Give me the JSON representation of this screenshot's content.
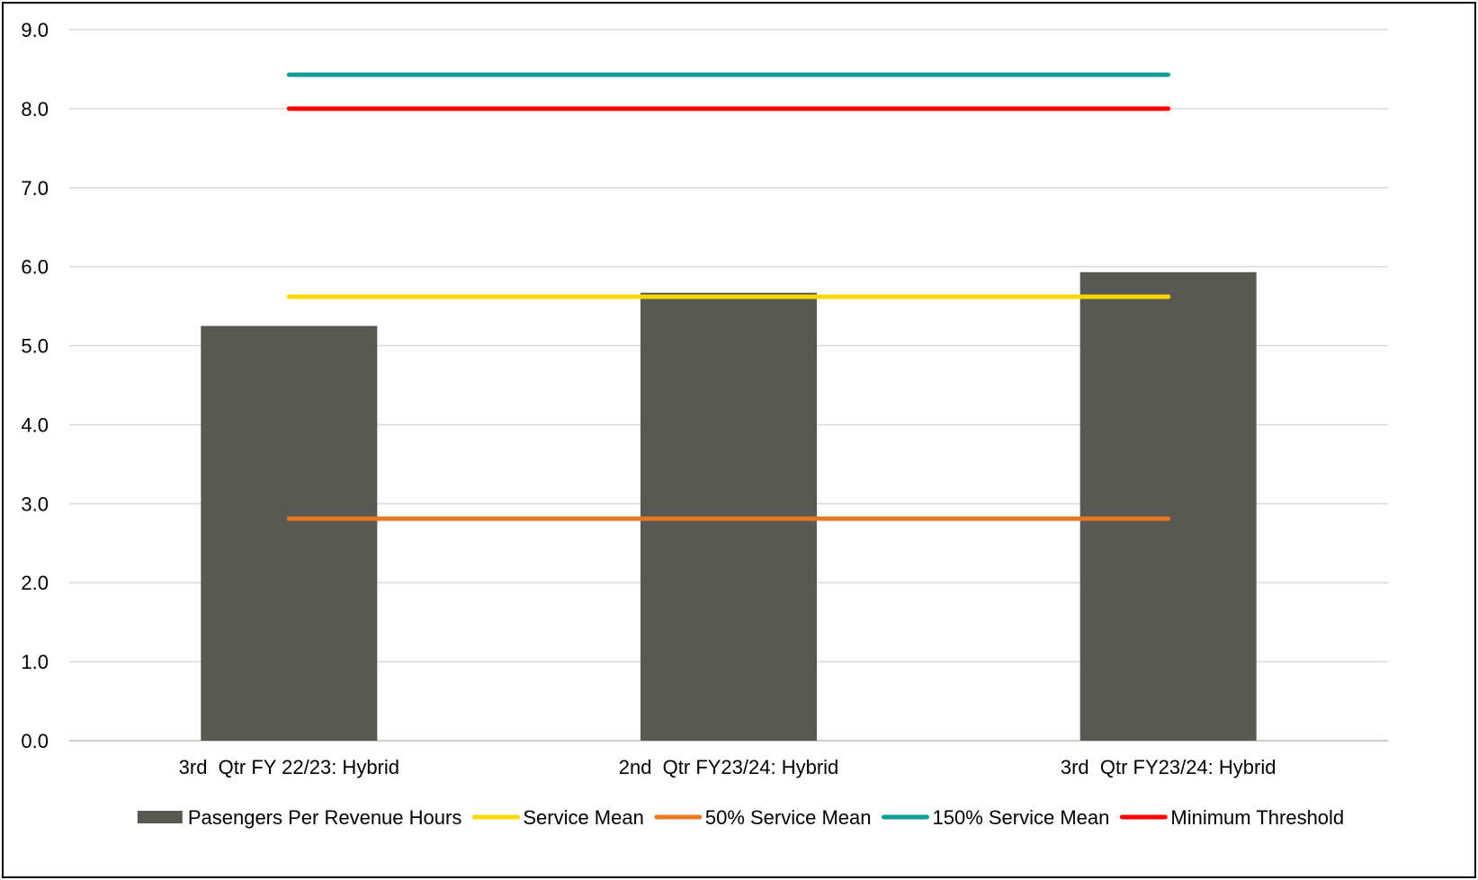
{
  "chart_data": {
    "type": "bar",
    "categories": [
      "3rd  Qtr FY 22/23: Hybrid",
      "2nd  Qtr FY23/24: Hybrid",
      "3rd  Qtr FY23/24: Hybrid"
    ],
    "series": [
      {
        "name": "Pasengers Per Revenue Hours",
        "kind": "bar",
        "color": "#595954",
        "values": [
          5.25,
          5.67,
          5.93
        ]
      },
      {
        "name": "Service Mean",
        "kind": "line",
        "color": "#FFD700",
        "values": [
          5.62,
          5.62,
          5.62
        ]
      },
      {
        "name": "50% Service Mean",
        "kind": "line",
        "color": "#E87722",
        "values": [
          2.81,
          2.81,
          2.81
        ]
      },
      {
        "name": "150% Service Mean",
        "kind": "line",
        "color": "#0E9E95",
        "values": [
          8.43,
          8.43,
          8.43
        ]
      },
      {
        "name": "Minimum Threshold",
        "kind": "line",
        "color": "#FF0000",
        "values": [
          8.0,
          8.0,
          8.0
        ]
      }
    ],
    "yticks": [
      "0.0",
      "1.0",
      "2.0",
      "3.0",
      "4.0",
      "5.0",
      "6.0",
      "7.0",
      "8.0",
      "9.0"
    ],
    "ylim": [
      0,
      9
    ],
    "grid": true,
    "legend_position": "bottom",
    "title": "",
    "xlabel": "",
    "ylabel": ""
  }
}
